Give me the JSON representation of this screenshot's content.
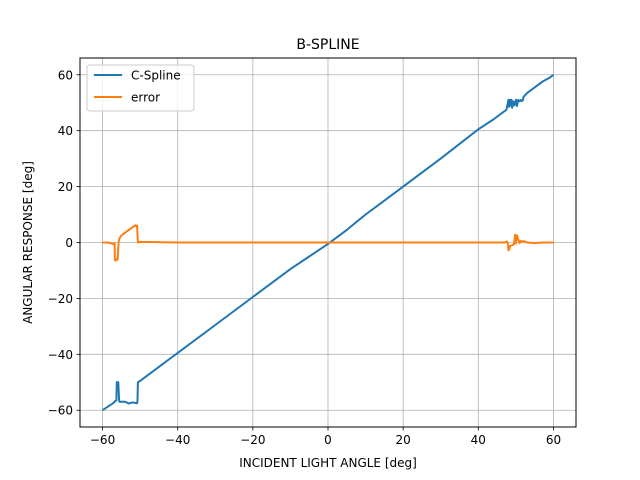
{
  "chart_data": {
    "type": "line",
    "title": "B-SPLINE",
    "xlabel": "INCIDENT LIGHT ANGLE [deg]",
    "ylabel": "ANGULAR RESPONSE [deg]",
    "xlim": [
      -66,
      66
    ],
    "ylim": [
      -66,
      66
    ],
    "xticks": [
      -60,
      -40,
      -20,
      0,
      20,
      40,
      60
    ],
    "yticks": [
      -60,
      -40,
      -20,
      0,
      20,
      40,
      60
    ],
    "xtick_labels": [
      "−60",
      "−40",
      "−20",
      "0",
      "20",
      "40",
      "60"
    ],
    "ytick_labels": [
      "−60",
      "−40",
      "−20",
      "0",
      "20",
      "40",
      "60"
    ],
    "grid": true,
    "legend_position": "top-left",
    "series": [
      {
        "name": "C-Spline",
        "color": "#1f77b4",
        "x": [
          -60,
          -58,
          -57.2,
          -56.6,
          -56.4,
          -56.3,
          -56.2,
          -55.9,
          -55.8,
          -55.6,
          -55.5,
          -54,
          -53,
          -52,
          -51,
          -50.8,
          -50.7,
          -50.6,
          -50,
          -48,
          -46,
          -44,
          -42,
          -40,
          -30,
          -20,
          -10,
          -5,
          0,
          2,
          5,
          10,
          20,
          30,
          40,
          44,
          47.5,
          48,
          48.2,
          48.4,
          48.6,
          48.8,
          49,
          49.3,
          49.6,
          50,
          50.3,
          50.6,
          51,
          51.3,
          51.6,
          51.9,
          52,
          53,
          55,
          57,
          59,
          60
        ],
        "y": [
          -60,
          -58.2,
          -57.5,
          -56.7,
          -56.6,
          -56.5,
          -50,
          -50,
          -50,
          -56.5,
          -57,
          -57,
          -57.6,
          -57.2,
          -57.5,
          -57.5,
          -56.5,
          -50,
          -49.5,
          -47.5,
          -45.5,
          -43.5,
          -41.5,
          -39.5,
          -29.5,
          -19.5,
          -9.5,
          -5,
          -0.5,
          1.5,
          4.5,
          10,
          20,
          30,
          40.5,
          44,
          47.5,
          51,
          48.5,
          51,
          49,
          51,
          48.2,
          50.5,
          49,
          51,
          48.8,
          51,
          50.5,
          51,
          50.6,
          51,
          52,
          53.5,
          55.5,
          57.5,
          59,
          60
        ]
      },
      {
        "name": "error",
        "color": "#ff7f0e",
        "x": [
          -60,
          -58.5,
          -57.2,
          -56.8,
          -56.7,
          -56.5,
          -56.3,
          -56,
          -55.7,
          -55.5,
          -55,
          -54,
          -53,
          -52,
          -51.2,
          -51,
          -50.8,
          -50.6,
          -50,
          -40,
          -20,
          0,
          20,
          40,
          47,
          47.6,
          47.9,
          48,
          48.2,
          48.5,
          49,
          49.5,
          49.8,
          50,
          50.3,
          50.6,
          51,
          51.3,
          51.6,
          52,
          53,
          55,
          57,
          59,
          60
        ],
        "y": [
          0,
          0,
          -0.5,
          -0.3,
          -6.2,
          -6.5,
          -6,
          -6.1,
          0.5,
          1.5,
          2.5,
          3.5,
          4.5,
          5.5,
          6.2,
          5.8,
          6,
          0,
          0.2,
          0,
          0,
          0,
          0,
          0,
          0,
          0.4,
          -0.5,
          -2.8,
          -2.5,
          -1.2,
          -1,
          -0.6,
          2.8,
          -0.3,
          2.6,
          1.2,
          -0.2,
          0.6,
          0.2,
          0.5,
          0,
          -0.2,
          0,
          0,
          0
        ]
      }
    ]
  }
}
